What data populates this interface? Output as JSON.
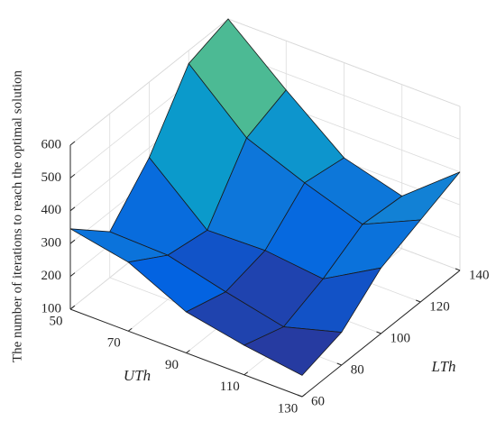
{
  "chart_data": {
    "type": "surface",
    "xlabel": "UTh",
    "ylabel": "LTh",
    "zlabel": "The number of iterations to reach the optimal solution",
    "x": [
      50,
      70,
      90,
      110,
      130
    ],
    "y": [
      60,
      80,
      100,
      120,
      140
    ],
    "z": [
      [
        345,
        240,
        370,
        560,
        600
      ],
      [
        310,
        235,
        215,
        400,
        450
      ],
      [
        225,
        190,
        220,
        330,
        310
      ],
      [
        190,
        150,
        200,
        270,
        260
      ],
      [
        165,
        200,
        300,
        350,
        400
      ]
    ],
    "xlim": [
      50,
      130
    ],
    "ylim": [
      60,
      140
    ],
    "zlim": [
      100,
      600
    ],
    "xticks": [
      50,
      70,
      90,
      110,
      130
    ],
    "yticks": [
      60,
      80,
      100,
      120,
      140
    ],
    "zticks": [
      100,
      200,
      300,
      400,
      500,
      600
    ],
    "grid": true
  }
}
